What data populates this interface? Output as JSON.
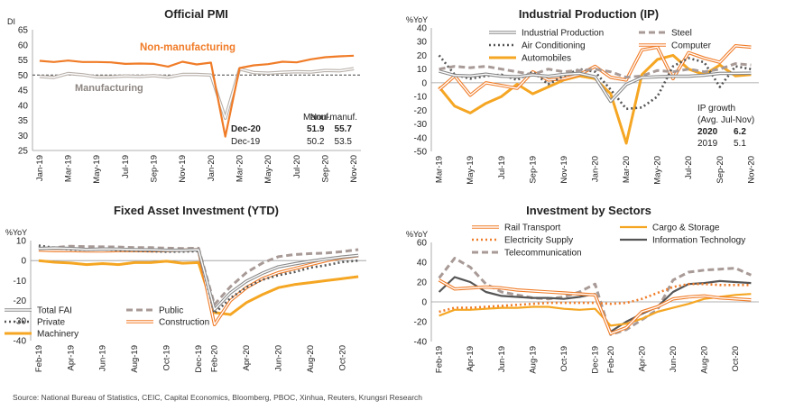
{
  "source": "Source: National Bureau of Statistics, CEIC, Capital Economics, Bloomberg, PBOC, Xinhua, Reuters,  Krungsri Research",
  "colors": {
    "orange": "#f07c28",
    "grey": "#b8b0aa",
    "gold": "#f5a623",
    "dark": "#555555",
    "taupe": "#a89a96"
  },
  "chart_data": [
    {
      "type": "line",
      "title": "Official PMI",
      "ylabel": "DI",
      "ylim": [
        25,
        65
      ],
      "yticks": [
        25,
        30,
        35,
        40,
        45,
        50,
        55,
        60,
        65
      ],
      "categories": [
        "Jan-19",
        "Feb-19",
        "Mar-19",
        "Apr-19",
        "May-19",
        "Jun-19",
        "Jul-19",
        "Aug-19",
        "Sep-19",
        "Oct-19",
        "Nov-19",
        "Dec-19",
        "Jan-20",
        "Feb-20",
        "Mar-20",
        "Apr-20",
        "May-20",
        "Jun-20",
        "Jul-20",
        "Aug-20",
        "Sep-20",
        "Oct-20",
        "Nov-20"
      ],
      "xtick_labels": [
        "Jan-19",
        "Mar-19",
        "May-19",
        "Jul-19",
        "Sep-19",
        "Nov-19",
        "Jan-20",
        "Mar-20",
        "May-20",
        "Jul-20",
        "Sep-20",
        "Nov-20"
      ],
      "reference_line": 50,
      "series": [
        {
          "name": "Non-manufacturing",
          "color": "#f07c28",
          "values": [
            54.7,
            54.3,
            54.8,
            54.3,
            54.3,
            54.2,
            53.7,
            53.8,
            53.7,
            52.8,
            54.4,
            53.5,
            54.1,
            29.6,
            52.3,
            53.2,
            53.6,
            54.4,
            54.2,
            55.2,
            55.9,
            56.2,
            56.4
          ]
        },
        {
          "name": "Manufacturing",
          "color": "#b8b0aa",
          "values": [
            49.5,
            49.2,
            50.5,
            50.1,
            49.4,
            49.4,
            49.7,
            49.5,
            49.8,
            49.3,
            50.2,
            50.2,
            50.0,
            35.7,
            52.0,
            50.8,
            50.6,
            50.9,
            51.1,
            51.0,
            51.5,
            51.4,
            52.1
          ]
        }
      ],
      "annotation_table": {
        "headers": [
          "",
          "Manuf.",
          "Non-manuf."
        ],
        "rows": [
          [
            "Dec-20",
            "51.9",
            "55.7"
          ],
          [
            "Dec-19",
            "50.2",
            "53.5"
          ]
        ]
      }
    },
    {
      "type": "line",
      "title": "Industrial Production (IP)",
      "ylabel": "%YoY",
      "ylim": [
        -50,
        40
      ],
      "yticks": [
        -50,
        -40,
        -30,
        -20,
        -10,
        0,
        10,
        20,
        30,
        40
      ],
      "categories": [
        "Mar-19",
        "Apr-19",
        "May-19",
        "Jun-19",
        "Jul-19",
        "Aug-19",
        "Sep-19",
        "Oct-19",
        "Nov-19",
        "Dec-19",
        "Jan-20",
        "Feb-20",
        "Mar-20",
        "Apr-20",
        "May-20",
        "Jun-20",
        "Jul-20",
        "Aug-20",
        "Sep-20",
        "Oct-20",
        "Nov-20"
      ],
      "xtick_labels": [
        "Mar-19",
        "May-19",
        "Jul-19",
        "Sep-19",
        "Nov-19",
        "Jan-20",
        "Mar-20",
        "May-20",
        "Jul-20",
        "Sep-20",
        "Nov-20"
      ],
      "series": [
        {
          "name": "Industrial Production",
          "color": "#8a8a8a",
          "values": [
            8.5,
            5.4,
            5.0,
            6.3,
            4.8,
            4.4,
            5.8,
            4.7,
            6.2,
            6.9,
            4.3,
            -13.5,
            -1.1,
            3.9,
            4.4,
            4.8,
            4.8,
            5.6,
            6.9,
            6.9,
            7.0
          ]
        },
        {
          "name": "Steel",
          "color": "#a89a96",
          "values": [
            10,
            12,
            11,
            12,
            10,
            8,
            6,
            10,
            8,
            9,
            10,
            8,
            4,
            5,
            9,
            8,
            10,
            8,
            10,
            14,
            13
          ]
        },
        {
          "name": "Air Conditioning",
          "color": "#555555",
          "values": [
            20,
            6,
            3,
            5,
            6,
            2,
            8,
            -1,
            5,
            10,
            8,
            -5,
            -19,
            -18,
            -10,
            12,
            18,
            15,
            -3,
            12,
            10
          ]
        },
        {
          "name": "Computer",
          "color": "#f07c28",
          "values": [
            -5,
            5,
            -9,
            0,
            -2,
            -4,
            8,
            2,
            3,
            6,
            12,
            4,
            2,
            24,
            26,
            3,
            22,
            18,
            15,
            27,
            26
          ]
        },
        {
          "name": "Automobiles",
          "color": "#f5a623",
          "values": [
            -3,
            -17,
            -22,
            -15,
            -10,
            -1,
            -8,
            -3,
            2,
            5,
            3,
            -8,
            -44,
            6,
            17,
            20,
            10,
            6,
            13,
            5,
            6
          ]
        }
      ],
      "annotation_table": {
        "headers": [
          "IP growth",
          "(Avg. Jul-Nov)"
        ],
        "rows": [
          [
            "2020",
            "6.2"
          ],
          [
            "2019",
            "5.1"
          ]
        ]
      }
    },
    {
      "type": "line",
      "title": "Fixed Asset Investment (YTD)",
      "ylabel": "%YoY",
      "ylim": [
        -40,
        10
      ],
      "yticks": [
        -40,
        -30,
        -20,
        -10,
        0,
        10
      ],
      "categories": [
        "Feb-19",
        "Mar-19",
        "Apr-19",
        "May-19",
        "Jun-19",
        "Jul-19",
        "Aug-19",
        "Sep-19",
        "Oct-19",
        "Nov-19",
        "Dec-19",
        "Feb-20",
        "Mar-20",
        "Apr-20",
        "May-20",
        "Jun-20",
        "Jul-20",
        "Aug-20",
        "Sep-20",
        "Oct-20",
        "Nov-20"
      ],
      "xtick_labels": [
        "Feb-19",
        "Apr-19",
        "Jun-19",
        "Aug-19",
        "Oct-19",
        "Dec-19",
        "Feb-20",
        "Apr-20",
        "Jun-20",
        "Aug-20",
        "Oct-20"
      ],
      "series": [
        {
          "name": "Total FAI",
          "color": "#8a8a8a",
          "values": [
            6.1,
            6.3,
            6.1,
            5.6,
            5.8,
            5.7,
            5.5,
            5.4,
            5.2,
            5.2,
            5.4,
            -24.5,
            -16.1,
            -10.3,
            -6.3,
            -3.1,
            -1.6,
            -0.3,
            0.8,
            1.8,
            2.6
          ]
        },
        {
          "name": "Public",
          "color": "#a89a96",
          "values": [
            5.8,
            6.5,
            7.2,
            7.0,
            6.9,
            6.8,
            6.5,
            6.5,
            6.2,
            6.1,
            6.2,
            -22.0,
            -13.0,
            -6.0,
            -1.2,
            2.0,
            3.0,
            3.5,
            3.8,
            4.5,
            5.5
          ]
        },
        {
          "name": "Private",
          "color": "#555555",
          "values": [
            7.5,
            6.4,
            5.5,
            5.3,
            5.7,
            5.1,
            4.9,
            4.7,
            4.4,
            4.5,
            4.7,
            -26.4,
            -18.8,
            -13.3,
            -9.6,
            -7.3,
            -5.7,
            -3.5,
            -2.3,
            -0.7,
            0.0
          ]
        },
        {
          "name": "Construction",
          "color": "#f07c28",
          "values": [
            5.3,
            5.0,
            5.0,
            4.8,
            4.8,
            5.0,
            5.0,
            4.9,
            5.0,
            5.2,
            5.5,
            -32.0,
            -20.0,
            -13.5,
            -9.0,
            -6.0,
            -4.0,
            -2.0,
            0.0,
            1.5,
            2.5
          ]
        },
        {
          "name": "Machinery",
          "color": "#f5a623",
          "values": [
            0.0,
            -0.8,
            -1.2,
            -2.0,
            -1.5,
            -2.0,
            -1.0,
            -1.0,
            -0.3,
            -1.3,
            -1.0,
            -26.0,
            -27.0,
            -21.0,
            -17.0,
            -13.5,
            -12.0,
            -11.0,
            -10.0,
            -9.0,
            -8.0
          ]
        }
      ]
    },
    {
      "type": "line",
      "title": "Investment by Sectors",
      "ylabel": "%YoY",
      "ylim": [
        -40,
        60
      ],
      "yticks": [
        -40,
        -20,
        0,
        20,
        40,
        60
      ],
      "categories": [
        "Feb-19",
        "Mar-19",
        "Apr-19",
        "May-19",
        "Jun-19",
        "Jul-19",
        "Aug-19",
        "Sep-19",
        "Oct-19",
        "Nov-19",
        "Dec-19",
        "Feb-20",
        "Mar-20",
        "Apr-20",
        "May-20",
        "Jun-20",
        "Jul-20",
        "Aug-20",
        "Sep-20",
        "Oct-20",
        "Nov-20"
      ],
      "xtick_labels": [
        "Feb-19",
        "Apr-19",
        "Jun-19",
        "Aug-19",
        "Oct-19",
        "Dec-19",
        "Feb-20",
        "Apr-20",
        "Jun-20",
        "Aug-20",
        "Oct-20"
      ],
      "series": [
        {
          "name": "Rail Transport",
          "color": "#f07c28",
          "values": [
            22,
            13,
            14,
            15,
            14,
            12,
            11,
            10,
            9,
            8,
            7,
            -32,
            -26,
            -10,
            -5,
            3,
            5,
            6,
            4,
            3,
            2
          ]
        },
        {
          "name": "Cargo & Storage",
          "color": "#f5a623",
          "values": [
            -14,
            -8,
            -8,
            -7,
            -6,
            -6,
            -5,
            -5,
            -7,
            -8,
            -7,
            -24,
            -22,
            -17,
            -10,
            -6,
            -2,
            3,
            5,
            7,
            8
          ]
        },
        {
          "name": "Electricity Supply",
          "color": "#f07c28",
          "values": [
            -10,
            -6,
            -6,
            -5,
            -4,
            -3,
            -2,
            -1,
            -1,
            -1,
            -1,
            -2,
            -1,
            3,
            9,
            15,
            18,
            18,
            17,
            17,
            17
          ]
        },
        {
          "name": "Information Technology",
          "color": "#555555",
          "values": [
            10,
            25,
            20,
            10,
            6,
            5,
            4,
            4,
            3,
            5,
            8,
            -30,
            -20,
            -12,
            -5,
            10,
            18,
            19,
            21,
            20,
            19
          ]
        },
        {
          "name": "Telecommunication",
          "color": "#a89a96",
          "values": [
            24,
            44,
            35,
            18,
            10,
            7,
            4,
            3,
            5,
            10,
            18,
            -33,
            -28,
            -18,
            -8,
            22,
            30,
            32,
            33,
            34,
            27
          ]
        }
      ]
    }
  ]
}
